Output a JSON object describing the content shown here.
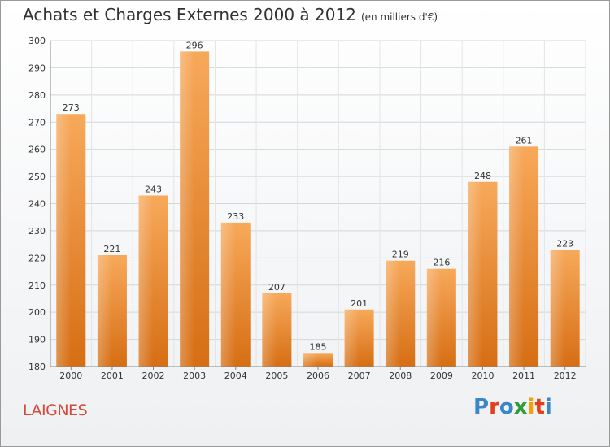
{
  "header": {
    "title": "Achats et Charges Externes 2000 à 2012",
    "unit": "(en milliers d'€)"
  },
  "footer": {
    "location": "LAIGNES",
    "logo": [
      "P",
      "r",
      "o",
      "x",
      "i",
      "t",
      "i"
    ],
    "logo_colors": [
      "#3a86c8",
      "#e0401c",
      "#3a86c8",
      "#2f9e3a",
      "#f2a20c",
      "#e0401c",
      "#3a86c8"
    ]
  },
  "chart_data": {
    "type": "bar",
    "title": "Achats et Charges Externes 2000 à 2012",
    "xlabel": "",
    "ylabel": "",
    "categories": [
      "2000",
      "2001",
      "2002",
      "2003",
      "2004",
      "2005",
      "2006",
      "2007",
      "2008",
      "2009",
      "2010",
      "2011",
      "2012"
    ],
    "values": [
      273,
      221,
      243,
      296,
      233,
      207,
      185,
      201,
      219,
      216,
      248,
      261,
      223
    ],
    "ylim": [
      180,
      300
    ],
    "yticks": [
      180,
      190,
      200,
      210,
      220,
      230,
      240,
      250,
      260,
      270,
      280,
      290,
      300
    ],
    "grid": true,
    "bar_color": "#f0913a"
  }
}
